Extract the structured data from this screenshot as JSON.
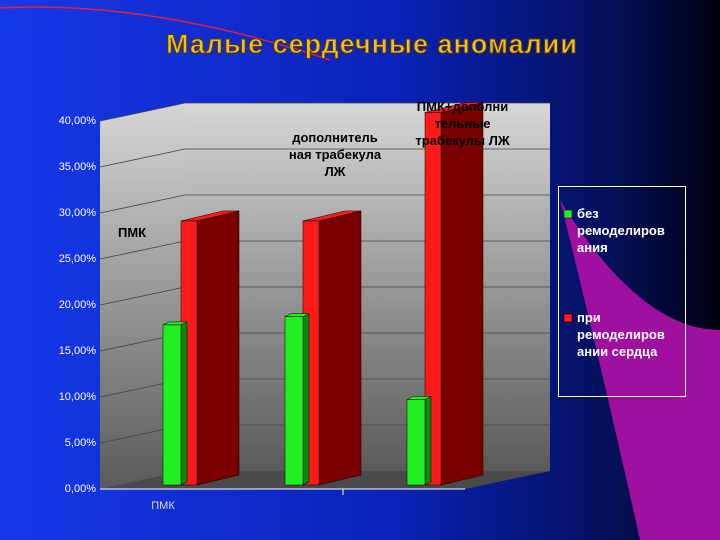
{
  "chart_data": {
    "type": "bar",
    "title": "Малые сердечные аномалии",
    "categories": [
      "ПМК",
      null,
      null
    ],
    "series": [
      {
        "name": "без\nремоделиров\nания",
        "color": "#22ee22",
        "values": [
          17.4,
          18.3,
          9.3
        ]
      },
      {
        "name": "при\nремоделиров\nании сердца",
        "color": "#ff1a1a",
        "values": [
          28.7,
          28.7,
          40.5
        ]
      }
    ],
    "annotations": [
      "ПМК",
      "дополнитель\nная трабекула\nЛЖ",
      "ПМК+дополни\nтельные\nтрабекулы ЛЖ"
    ],
    "ylim": [
      0,
      40
    ],
    "yticks": [
      {
        "value": 0,
        "label": "0,00%"
      },
      {
        "value": 5,
        "label": "5,00%"
      },
      {
        "value": 10,
        "label": "10,00%"
      },
      {
        "value": 15,
        "label": "15,00%"
      },
      {
        "value": 20,
        "label": "20,00%"
      },
      {
        "value": 25,
        "label": "25,00%"
      },
      {
        "value": 30,
        "label": "30,00%"
      },
      {
        "value": 35,
        "label": "35,00%"
      },
      {
        "value": 40,
        "label": "40,00%"
      }
    ],
    "grid": true
  }
}
